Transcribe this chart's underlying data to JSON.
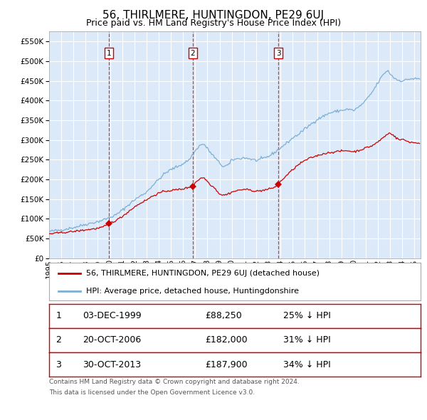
{
  "title": "56, THIRLMERE, HUNTINGDON, PE29 6UJ",
  "subtitle": "Price paid vs. HM Land Registry's House Price Index (HPI)",
  "legend_red": "56, THIRLMERE, HUNTINGDON, PE29 6UJ (detached house)",
  "legend_blue": "HPI: Average price, detached house, Huntingdonshire",
  "transactions": [
    {
      "num": 1,
      "date": "03-DEC-1999",
      "price": "£88,250",
      "pct": "25% ↓ HPI"
    },
    {
      "num": 2,
      "date": "20-OCT-2006",
      "price": "£182,000",
      "pct": "31% ↓ HPI"
    },
    {
      "num": 3,
      "date": "30-OCT-2013",
      "price": "£187,900",
      "pct": "34% ↓ HPI"
    }
  ],
  "transaction_dates_decimal": [
    1999.92,
    2006.8,
    2013.83
  ],
  "transaction_prices": [
    88250,
    182000,
    187900
  ],
  "ylabel_values": [
    0,
    50000,
    100000,
    150000,
    200000,
    250000,
    300000,
    350000,
    400000,
    450000,
    500000,
    550000
  ],
  "ylim": [
    0,
    575000
  ],
  "xlim_start": 1995.0,
  "xlim_end": 2025.5,
  "plot_bg": "#dce9f8",
  "grid_color": "#ffffff",
  "red_line_color": "#cc0000",
  "blue_line_color": "#7bafd4",
  "footer_line1": "Contains HM Land Registry data © Crown copyright and database right 2024.",
  "footer_line2": "This data is licensed under the Open Government Licence v3.0.",
  "title_fontsize": 11,
  "subtitle_fontsize": 9,
  "tick_fontsize": 7.5
}
